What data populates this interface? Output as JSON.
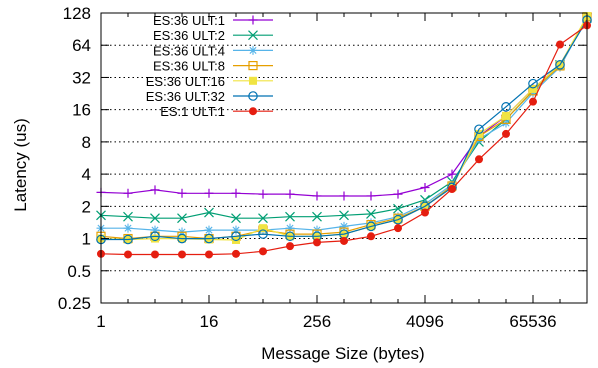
{
  "chart_data": {
    "type": "line",
    "xlabel": "Message Size (bytes)",
    "ylabel": "Latency (us)",
    "x_scale": "log2",
    "y_scale": "log2",
    "xlim": [
      1,
      262144
    ],
    "ylim": [
      0.25,
      128
    ],
    "x_ticks": [
      1,
      16,
      256,
      4096,
      65536
    ],
    "x_tick_labels": [
      "1",
      "16",
      "256",
      "4096",
      "65536"
    ],
    "y_ticks": [
      0.25,
      0.5,
      1,
      2,
      4,
      8,
      16,
      32,
      64,
      128
    ],
    "y_tick_labels": [
      "0.25",
      "0.5",
      "1",
      "2",
      "4",
      "8",
      "16",
      "32",
      "64",
      "128"
    ],
    "grid": "horizontal dotted",
    "legend_position": "top-left",
    "x": [
      1,
      2,
      4,
      8,
      16,
      32,
      64,
      128,
      256,
      512,
      1024,
      2048,
      4096,
      8192,
      16384,
      32768,
      65536,
      131072,
      262144
    ],
    "series": [
      {
        "name": "ES:36 ULT:1",
        "color": "#9400d3",
        "marker": "plus",
        "values": [
          2.7,
          2.65,
          2.85,
          2.65,
          2.65,
          2.65,
          2.6,
          2.6,
          2.5,
          2.5,
          2.5,
          2.6,
          3.0,
          4.0,
          9.0,
          14.0,
          25.0,
          42.0,
          115.0
        ]
      },
      {
        "name": "ES:36 ULT:2",
        "color": "#009e73",
        "marker": "x",
        "values": [
          1.65,
          1.6,
          1.55,
          1.55,
          1.75,
          1.55,
          1.55,
          1.6,
          1.6,
          1.65,
          1.7,
          1.9,
          2.3,
          3.4,
          8.0,
          13.0,
          24.0,
          42.0,
          115.0
        ]
      },
      {
        "name": "ES:36 ULT:4",
        "color": "#56b4e9",
        "marker": "star",
        "values": [
          1.25,
          1.25,
          1.2,
          1.15,
          1.2,
          1.2,
          1.2,
          1.25,
          1.2,
          1.3,
          1.4,
          1.6,
          2.1,
          3.2,
          8.5,
          12.0,
          23.0,
          40.0,
          116.0
        ]
      },
      {
        "name": "ES:36 ULT:8",
        "color": "#e69f00",
        "marker": "square",
        "values": [
          1.05,
          1.0,
          1.05,
          1.05,
          1.0,
          1.05,
          1.2,
          1.1,
          1.1,
          1.15,
          1.35,
          1.55,
          2.0,
          3.1,
          9.0,
          13.0,
          24.0,
          41.0,
          118.0
        ]
      },
      {
        "name": "ES:36 ULT:16",
        "color": "#f0e442",
        "marker": "filled-square",
        "values": [
          1.0,
          0.98,
          1.0,
          1.0,
          0.98,
          0.97,
          1.25,
          1.05,
          1.05,
          1.1,
          1.3,
          1.5,
          2.0,
          3.0,
          9.5,
          14.0,
          25.0,
          42.0,
          120.0
        ]
      },
      {
        "name": "ES:36 ULT:32",
        "color": "#0072b2",
        "marker": "circle",
        "values": [
          0.98,
          0.98,
          1.05,
          1.0,
          1.0,
          1.05,
          1.1,
          1.05,
          1.05,
          1.1,
          1.3,
          1.5,
          2.0,
          3.0,
          10.5,
          17.0,
          28.0,
          42.0,
          110.0
        ]
      },
      {
        "name": "ES:1 ULT:1",
        "color": "#e51e10",
        "marker": "filled-circle",
        "values": [
          0.72,
          0.71,
          0.71,
          0.71,
          0.71,
          0.72,
          0.76,
          0.85,
          0.92,
          0.95,
          1.05,
          1.25,
          1.75,
          2.9,
          5.5,
          9.5,
          19.0,
          65.0,
          98.0
        ]
      }
    ]
  }
}
